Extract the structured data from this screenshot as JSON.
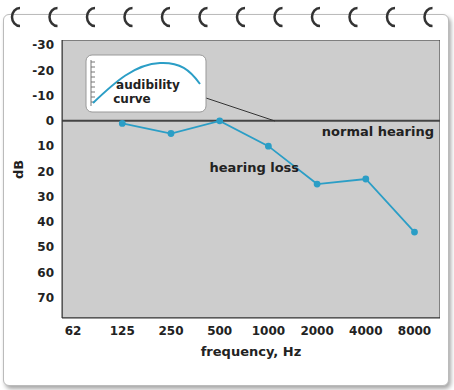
{
  "chart_data": {
    "type": "line",
    "x_label": "frequency, Hz",
    "y_label": "dB",
    "x": [
      125,
      250,
      500,
      1000,
      2000,
      4000,
      8000
    ],
    "series": [
      {
        "name": "hearing loss",
        "color": "#2b9ec6",
        "values": [
          1,
          5,
          0,
          10,
          25,
          23,
          44
        ],
        "marker": "circle"
      }
    ],
    "xlim": [
      53,
      11500
    ],
    "xticks": [
      62,
      125,
      250,
      500,
      1000,
      2000,
      4000,
      8000
    ],
    "ylim": [
      -32,
      78
    ],
    "yticks": [
      -30,
      -20,
      -10,
      0,
      10,
      20,
      30,
      40,
      50,
      60,
      70
    ],
    "log": "x",
    "grid": true,
    "annotations": [
      {
        "text": "normal hearing",
        "y": 0
      },
      {
        "text": "audibility curve"
      }
    ]
  }
}
